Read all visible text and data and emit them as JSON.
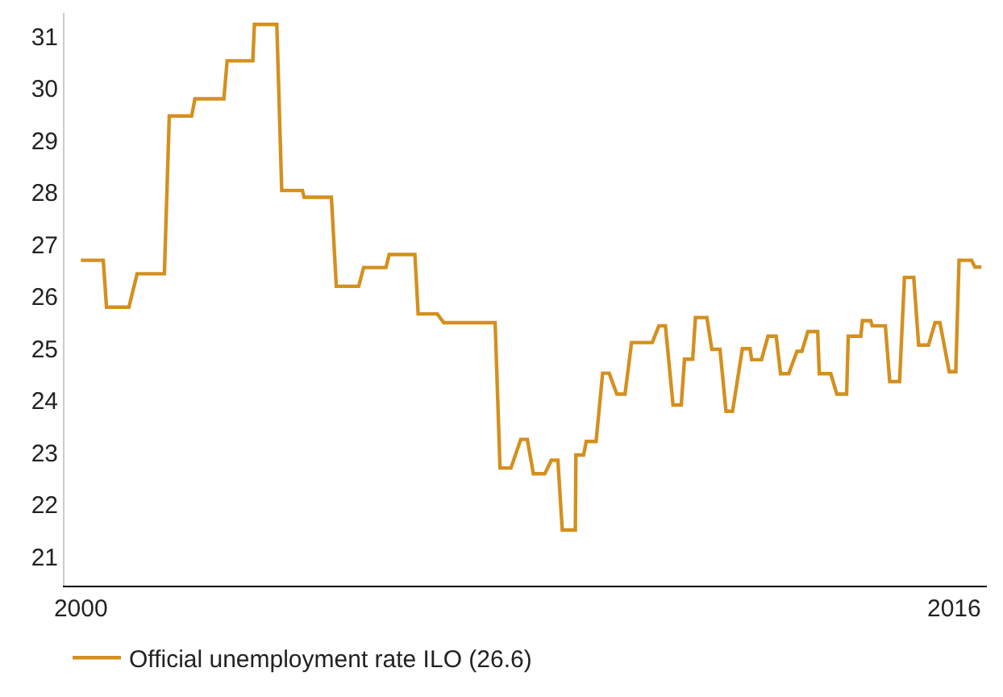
{
  "chart_data": {
    "type": "line",
    "xlim": [
      1999.7,
      2016.6
    ],
    "xticks": [
      2000,
      2016
    ],
    "ylim": [
      20.45,
      31.45
    ],
    "yticks": [
      21,
      22,
      23,
      24,
      25,
      26,
      27,
      28,
      29,
      30,
      31
    ],
    "grid": false,
    "legend": "bottom left",
    "marker": "none",
    "line_style": "solid",
    "series": [
      {
        "name": "Official unemployment rate ILO (26.6)",
        "color": "#d4901e",
        "x": [
          2000,
          2000.41,
          2000.47,
          2000.88,
          2001.03,
          2001.53,
          2001.62,
          2002.03,
          2002.09,
          2002.62,
          2002.68,
          2003.15,
          2003.18,
          2003.59,
          2003.68,
          2004.06,
          2004.09,
          2004.59,
          2004.68,
          2005.09,
          2005.18,
          2005.59,
          2005.65,
          2006.12,
          2006.18,
          2006.53,
          2006.65,
          2007.59,
          2007.68,
          2007.88,
          2008.06,
          2008.18,
          2008.29,
          2008.5,
          2008.62,
          2008.74,
          2008.82,
          2009.06,
          2009.07,
          2009.21,
          2009.26,
          2009.44,
          2009.56,
          2009.68,
          2009.82,
          2009.97,
          2010.09,
          2010.47,
          2010.59,
          2010.71,
          2010.85,
          2011.0,
          2011.06,
          2011.21,
          2011.26,
          2011.47,
          2011.56,
          2011.71,
          2011.82,
          2011.94,
          2012.12,
          2012.26,
          2012.29,
          2012.47,
          2012.59,
          2012.74,
          2012.82,
          2012.97,
          2013.12,
          2013.21,
          2013.32,
          2013.5,
          2013.53,
          2013.74,
          2013.85,
          2014.03,
          2014.06,
          2014.29,
          2014.32,
          2014.47,
          2014.5,
          2014.74,
          2014.82,
          2015.0,
          2015.09,
          2015.26,
          2015.35,
          2015.53,
          2015.65,
          2015.74,
          2015.91,
          2016.03,
          2016.09,
          2016.32,
          2016.38,
          2016.5
        ],
        "values": [
          26.7,
          26.7,
          25.8,
          25.8,
          26.44,
          26.44,
          29.47,
          29.47,
          29.8,
          29.8,
          30.53,
          30.53,
          31.23,
          31.23,
          28.04,
          28.04,
          27.91,
          27.91,
          26.2,
          26.2,
          26.56,
          26.56,
          26.81,
          26.81,
          25.67,
          25.67,
          25.5,
          25.5,
          22.71,
          22.71,
          23.26,
          23.26,
          22.6,
          22.6,
          22.86,
          22.86,
          21.52,
          21.52,
          22.96,
          22.96,
          23.22,
          23.22,
          24.53,
          24.53,
          24.13,
          24.13,
          25.12,
          25.12,
          25.44,
          25.44,
          23.92,
          23.92,
          24.8,
          24.8,
          25.6,
          25.6,
          24.99,
          24.99,
          23.8,
          23.8,
          25.0,
          25.0,
          24.79,
          24.79,
          25.24,
          25.24,
          24.52,
          24.52,
          24.95,
          24.95,
          25.33,
          25.33,
          24.52,
          24.52,
          24.13,
          24.13,
          25.24,
          25.24,
          25.54,
          25.54,
          25.44,
          25.44,
          24.37,
          24.37,
          26.37,
          26.37,
          25.07,
          25.07,
          25.5,
          25.5,
          24.56,
          24.56,
          26.7,
          26.7,
          26.57,
          26.57
        ]
      }
    ]
  }
}
